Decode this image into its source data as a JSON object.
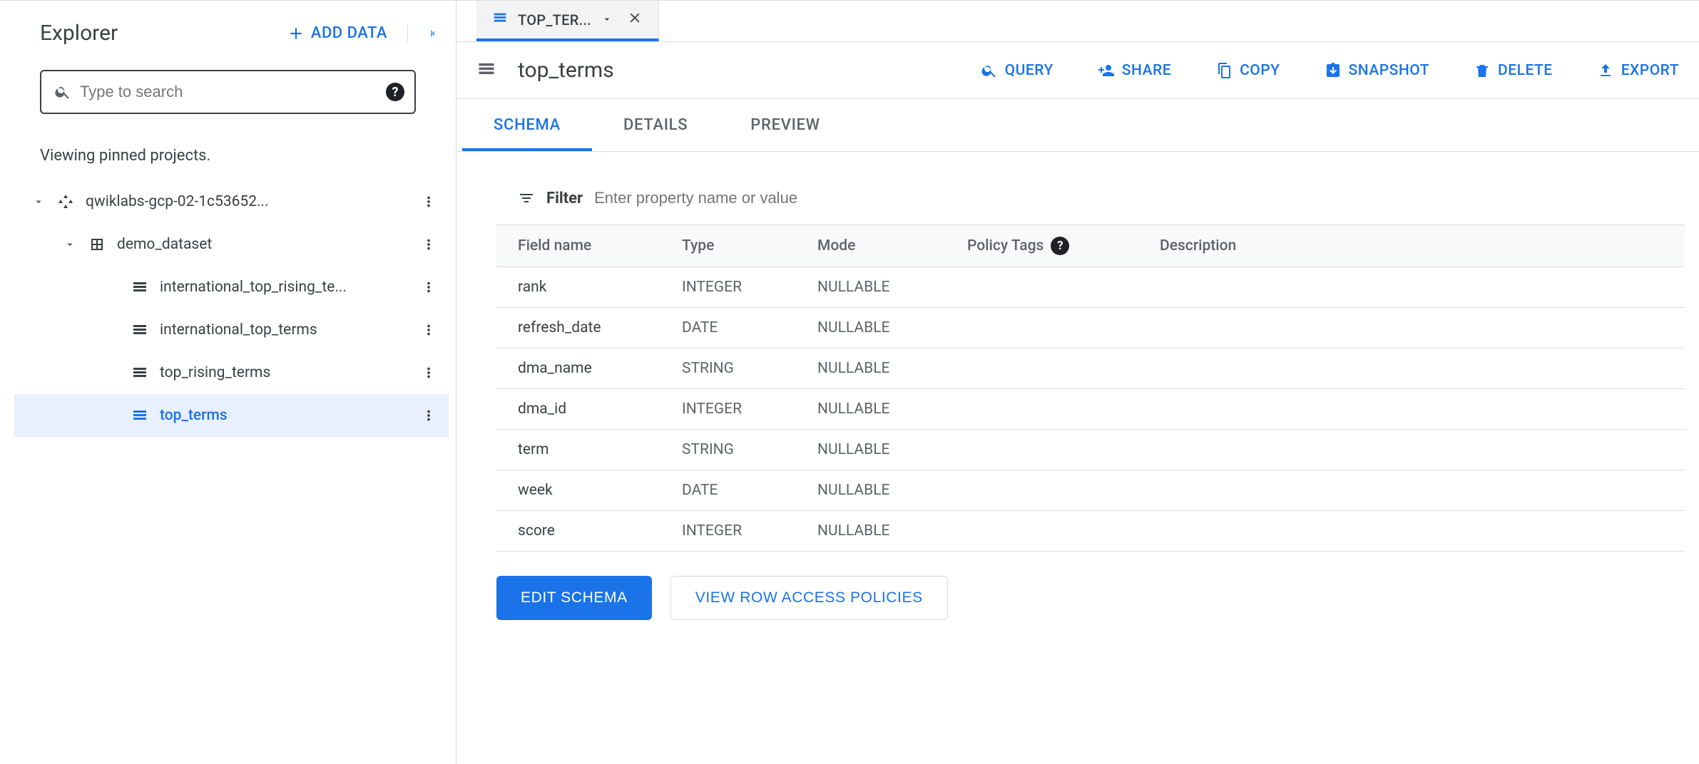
{
  "sidebar": {
    "title": "Explorer",
    "add_data_label": "ADD DATA",
    "search_placeholder": "Type to search",
    "viewing_text": "Viewing pinned projects.",
    "tree": [
      {
        "depth": 0,
        "icon": "project",
        "label": "qwiklabs-gcp-02-1c53652...",
        "expanded": true
      },
      {
        "depth": 1,
        "icon": "dataset",
        "label": "demo_dataset",
        "expanded": true
      },
      {
        "depth": 2,
        "icon": "table",
        "label": "international_top_rising_te..."
      },
      {
        "depth": 2,
        "icon": "table",
        "label": "international_top_terms"
      },
      {
        "depth": 2,
        "icon": "table",
        "label": "top_rising_terms"
      },
      {
        "depth": 2,
        "icon": "table",
        "label": "top_terms",
        "selected": true
      }
    ]
  },
  "workspace_tab": {
    "label": "TOP_TER..."
  },
  "header": {
    "title": "top_terms",
    "actions": [
      {
        "id": "query",
        "label": "QUERY",
        "icon": "search"
      },
      {
        "id": "share",
        "label": "SHARE",
        "icon": "person-add"
      },
      {
        "id": "copy",
        "label": "COPY",
        "icon": "copy"
      },
      {
        "id": "snapshot",
        "label": "SNAPSHOT",
        "icon": "snapshot"
      },
      {
        "id": "delete",
        "label": "DELETE",
        "icon": "trash"
      },
      {
        "id": "export",
        "label": "EXPORT",
        "icon": "upload"
      }
    ]
  },
  "subtabs": [
    {
      "id": "schema",
      "label": "SCHEMA",
      "active": true
    },
    {
      "id": "details",
      "label": "DETAILS",
      "active": false
    },
    {
      "id": "preview",
      "label": "PREVIEW",
      "active": false
    }
  ],
  "schema": {
    "filter_label": "Filter",
    "filter_placeholder": "Enter property name or value",
    "columns": [
      "Field name",
      "Type",
      "Mode",
      "Policy Tags",
      "Description"
    ],
    "rows": [
      {
        "field": "rank",
        "type": "INTEGER",
        "mode": "NULLABLE"
      },
      {
        "field": "refresh_date",
        "type": "DATE",
        "mode": "NULLABLE"
      },
      {
        "field": "dma_name",
        "type": "STRING",
        "mode": "NULLABLE"
      },
      {
        "field": "dma_id",
        "type": "INTEGER",
        "mode": "NULLABLE"
      },
      {
        "field": "term",
        "type": "STRING",
        "mode": "NULLABLE"
      },
      {
        "field": "week",
        "type": "DATE",
        "mode": "NULLABLE"
      },
      {
        "field": "score",
        "type": "INTEGER",
        "mode": "NULLABLE"
      }
    ],
    "edit_label": "EDIT SCHEMA",
    "view_policies_label": "VIEW ROW ACCESS POLICIES"
  },
  "colors": {
    "primary": "#1a73e8",
    "text": "#3c4043",
    "muted": "#5f6368",
    "border": "#dadce0",
    "selected_bg": "#e8f0fe",
    "tab_bg": "#f1f3f4",
    "head_bg": "#f8f9fa"
  }
}
